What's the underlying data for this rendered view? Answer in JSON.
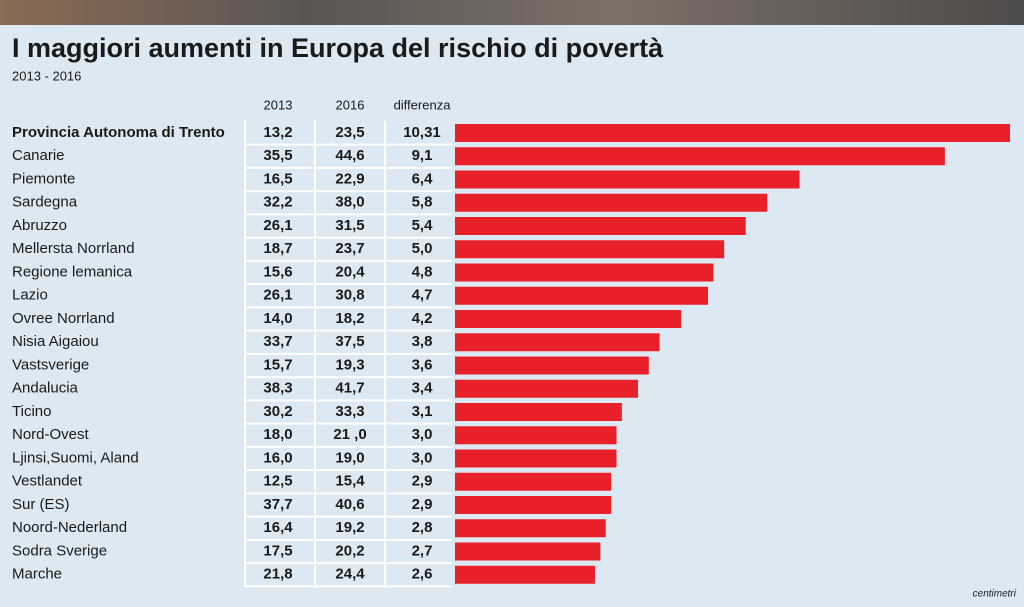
{
  "chart_data": {
    "type": "bar",
    "title": "I maggiori aumenti in Europa del rischio di povertà",
    "subtitle": "2013 - 2016",
    "credit": "centimetri",
    "columns": [
      "2013",
      "2016",
      "differenza"
    ],
    "categories": [
      "Provincia Autonoma di Trento",
      "Canarie",
      "Piemonte",
      "Sardegna",
      "Abruzzo",
      "Mellersta Norrland",
      "Regione lemanica",
      "Lazio",
      "Ovree Norrland",
      "Nisia Aigaiou",
      "Vastsverige",
      "Andalucia",
      "Ticino",
      "Nord-Ovest",
      "Ljinsi,Suomi, Aland",
      "Vestlandet",
      "Sur (ES)",
      "Noord-Nederland",
      "Sodra Sverige",
      "Marche"
    ],
    "table": [
      [
        "13,2",
        "23,5"
      ],
      [
        "35,5",
        "44,6"
      ],
      [
        "16,5",
        "22,9"
      ],
      [
        "32,2",
        "38,0"
      ],
      [
        "26,1",
        "31,5"
      ],
      [
        "18,7",
        "23,7"
      ],
      [
        "15,6",
        "20,4"
      ],
      [
        "26,1",
        "30,8"
      ],
      [
        "14,0",
        "18,2"
      ],
      [
        "33,7",
        "37,5"
      ],
      [
        "15,7",
        "19,3"
      ],
      [
        "38,3",
        "41,7"
      ],
      [
        "30,2",
        "33,3"
      ],
      [
        "18,0",
        "21 ,0"
      ],
      [
        "16,0",
        "19,0"
      ],
      [
        "12,5",
        "15,4"
      ],
      [
        "37,7",
        "40,6"
      ],
      [
        "16,4",
        "19,2"
      ],
      [
        "17,5",
        "20,2"
      ],
      [
        "21,8",
        "24,4"
      ]
    ],
    "values": [
      10.31,
      9.1,
      6.4,
      5.8,
      5.4,
      5.0,
      4.8,
      4.7,
      4.2,
      3.8,
      3.6,
      3.4,
      3.1,
      3.0,
      3.0,
      2.9,
      2.9,
      2.8,
      2.7,
      2.6
    ],
    "value_labels": [
      "10,31",
      "9,1",
      "6,4",
      "5,8",
      "5,4",
      "5,0",
      "4,8",
      "4,7",
      "4,2",
      "3,8",
      "3,6",
      "3,4",
      "3,1",
      "3,0",
      "3,0",
      "2,9",
      "2,9",
      "2,8",
      "2,7",
      "2,6"
    ],
    "color": "#e8202a",
    "xlim": [
      0,
      10.31
    ]
  }
}
